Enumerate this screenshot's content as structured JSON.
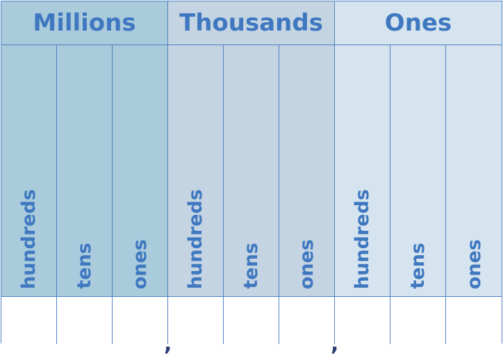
{
  "periods": [
    {
      "name": "Millions",
      "header_color": "#a9cbdc",
      "body_color": "#a9cbdc"
    },
    {
      "name": "Thousands",
      "header_color": "#c4d4e2",
      "body_color": "#c4d4e2"
    },
    {
      "name": "Ones",
      "header_color": "#d6e4ef",
      "body_color": "#d6e4ef"
    }
  ],
  "place_labels": [
    "hundreds",
    "tens",
    "ones"
  ],
  "separator": ",",
  "colors": {
    "text": "#3f78c0",
    "border": "#4f80c2",
    "comma": "#2b3d73"
  }
}
